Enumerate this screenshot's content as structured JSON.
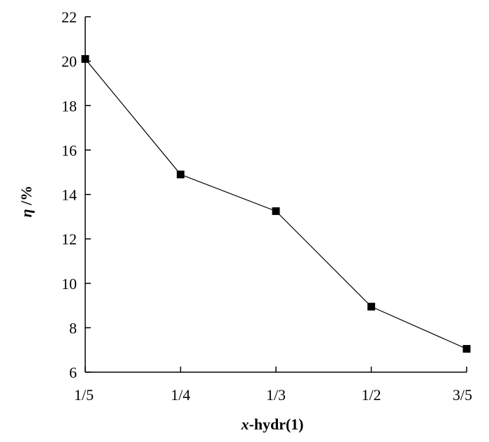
{
  "chart_data": {
    "type": "line",
    "categories": [
      "1/5",
      "1/4",
      "1/3",
      "1/2",
      "3/5"
    ],
    "series": [
      {
        "values": [
          20.1,
          14.9,
          13.25,
          8.95,
          7.05
        ],
        "color": "#000000",
        "marker": "square"
      }
    ],
    "xlabel": {
      "var": "x",
      "rest": "-hydr(1)"
    },
    "ylabel": {
      "var": "η",
      "rest": " /%"
    },
    "ylim": [
      6,
      22
    ],
    "yticks": [
      6,
      8,
      10,
      12,
      14,
      16,
      18,
      20,
      22
    ],
    "grid": false,
    "legend": "none"
  }
}
